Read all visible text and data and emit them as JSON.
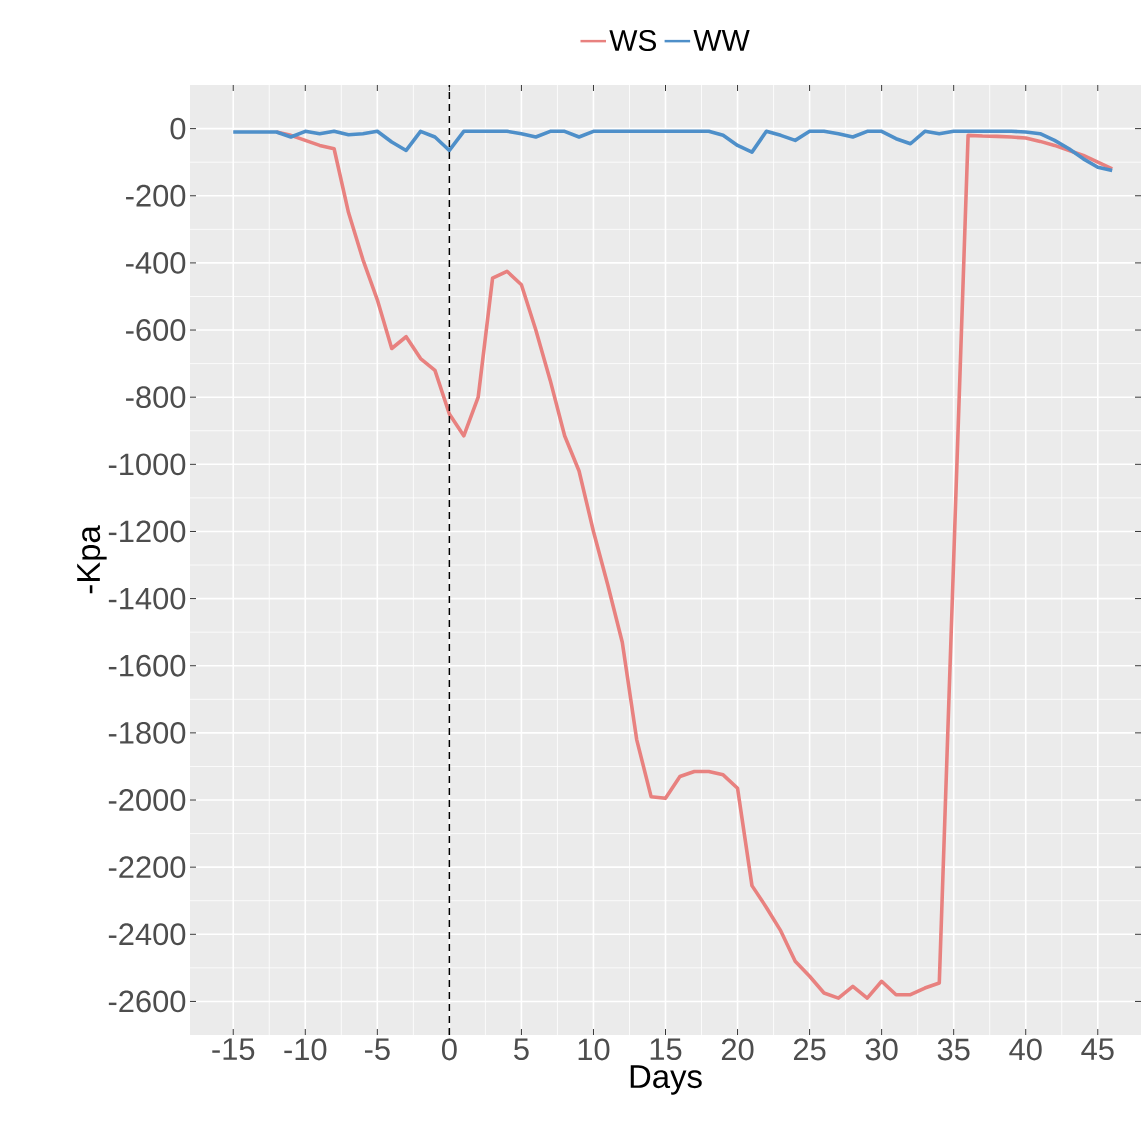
{
  "chart_data": {
    "type": "line",
    "xlabel": "Days",
    "ylabel": "-Kpa",
    "xlim": [
      -18,
      48
    ],
    "ylim": [
      -2700,
      130
    ],
    "xticks": [
      -15,
      -10,
      -5,
      0,
      5,
      10,
      15,
      20,
      25,
      30,
      35,
      40,
      45
    ],
    "yticks": [
      -2600,
      -2400,
      -2200,
      -2000,
      -1800,
      -1600,
      -1400,
      -1200,
      -1000,
      -800,
      -600,
      -400,
      -200,
      0
    ],
    "grid": true,
    "legend": "top",
    "marker": "none",
    "line_style": "solid",
    "ref_lines": [
      {
        "axis": "x",
        "value": 0,
        "color": "#000000",
        "line_style": "dashed"
      }
    ],
    "series": [
      {
        "name": "WS",
        "color": "#e8817f",
        "x": [
          -12,
          -11,
          -10,
          -9,
          -8,
          -7,
          -6,
          -5,
          -4,
          -3,
          -2,
          -1,
          0,
          1,
          2,
          3,
          4,
          5,
          6,
          7,
          8,
          9,
          10,
          11,
          12,
          13,
          14,
          15,
          16,
          17,
          18,
          19,
          20,
          21,
          22,
          23,
          24,
          25,
          26,
          27,
          28,
          29,
          30,
          31,
          32,
          33,
          34,
          36,
          37,
          38,
          39,
          40,
          41,
          42,
          43,
          44,
          45,
          46
        ],
        "values": [
          -10,
          -20,
          -35,
          -50,
          -60,
          -250,
          -390,
          -510,
          -655,
          -620,
          -685,
          -720,
          -850,
          -915,
          -800,
          -445,
          -425,
          -465,
          -600,
          -750,
          -915,
          -1020,
          -1200,
          -1360,
          -1530,
          -1820,
          -1990,
          -1995,
          -1930,
          -1915,
          -1915,
          -1925,
          -1965,
          -2255,
          -2320,
          -2390,
          -2480,
          -2525,
          -2575,
          -2590,
          -2555,
          -2590,
          -2540,
          -2580,
          -2580,
          -2560,
          -2545,
          -20,
          -22,
          -23,
          -25,
          -28,
          -38,
          -50,
          -65,
          -80,
          -100,
          -120
        ]
      },
      {
        "name": "WW",
        "color": "#4e8fc9",
        "x": [
          -15,
          -14,
          -13,
          -12,
          -11,
          -10,
          -9,
          -8,
          -7,
          -6,
          -5,
          -4,
          -3,
          -2,
          -1,
          0,
          1,
          2,
          3,
          4,
          5,
          6,
          7,
          8,
          9,
          10,
          11,
          12,
          13,
          14,
          15,
          16,
          17,
          18,
          19,
          20,
          21,
          22,
          23,
          24,
          25,
          26,
          27,
          28,
          29,
          30,
          31,
          32,
          33,
          34,
          35,
          36,
          37,
          38,
          39,
          40,
          41,
          42,
          43,
          44,
          45,
          46
        ],
        "values": [
          -10,
          -10,
          -10,
          -10,
          -25,
          -8,
          -15,
          -8,
          -18,
          -15,
          -8,
          -40,
          -65,
          -8,
          -25,
          -65,
          -8,
          -8,
          -8,
          -8,
          -15,
          -25,
          -8,
          -8,
          -25,
          -8,
          -8,
          -8,
          -8,
          -8,
          -8,
          -8,
          -8,
          -8,
          -20,
          -50,
          -70,
          -8,
          -20,
          -35,
          -8,
          -8,
          -15,
          -25,
          -8,
          -8,
          -30,
          -45,
          -8,
          -15,
          -8,
          -8,
          -8,
          -8,
          -8,
          -10,
          -15,
          -35,
          -60,
          -90,
          -115,
          -125
        ]
      }
    ]
  }
}
